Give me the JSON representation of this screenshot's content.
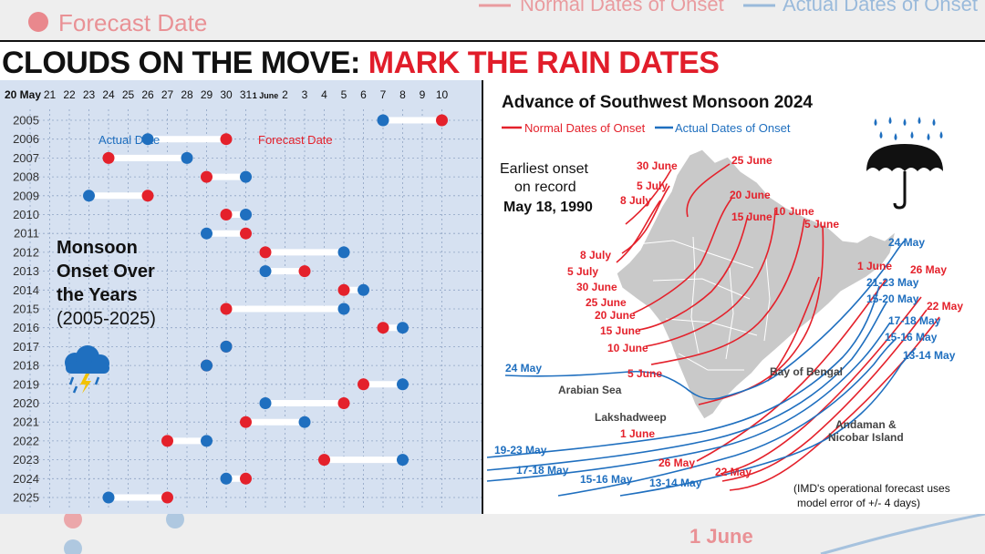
{
  "title": {
    "black": "CLOUDS ON THE MOVE:",
    "red": "MARK THE RAIN DATES"
  },
  "colors": {
    "red": "#e4212b",
    "blue": "#1f6fbf",
    "panel_bg": "#d6e1f1",
    "title_red": "#e11d2a"
  },
  "top_strip": {
    "forecast_label": "Forecast Date",
    "normal_label": "Normal Dates of Onset",
    "actual_label": "Actual Dates of Onset"
  },
  "bottom_strip": {
    "label": "1 June"
  },
  "left": {
    "heading_line1": "Monsoon",
    "heading_line2": "Onset Over",
    "heading_line3": "the Years",
    "heading_line4": "(2005-2025)",
    "actual_label": "Actual Date",
    "forecast_label": "Forecast Date",
    "icon": "storm-cloud-icon"
  },
  "right": {
    "title": "Advance of Southwest Monsoon 2024",
    "legend_normal": "Normal Dates of Onset",
    "legend_actual": "Actual Dates of Onset",
    "earliest_line1": "Earliest onset",
    "earliest_line2": "on record",
    "earliest_line3": "May 18, 1990",
    "normal_labels": [
      "30 June",
      "25 June",
      "5 July",
      "8 July",
      "20 June",
      "15 June",
      "10 June",
      "5 June",
      "8 July",
      "5 July",
      "30 June",
      "25 June",
      "20 June",
      "15 June",
      "10 June",
      "5 June",
      "1 June",
      "1 June",
      "26 May",
      "22 May",
      "26 May",
      "22 May"
    ],
    "actual_labels": [
      "24 May",
      "21-23 May",
      "15-20 May",
      "17-18 May",
      "15-16 May",
      "13-14 May",
      "24 May",
      "19-23 May",
      "17-18 May",
      "15-16 May",
      "13-14 May"
    ],
    "places": [
      "Arabian Sea",
      "Bay of Bengal",
      "Lakshadweep",
      "Andaman &",
      "Nicobar Island"
    ],
    "note_line1": "(IMD's operational forecast uses",
    "note_line2": "model error of +/- 4 days)",
    "icon": "umbrella-rain-icon"
  },
  "chart_data": {
    "type": "dumbbell",
    "title": "Monsoon Onset Over the Years (2005-2025)",
    "x_ticks": [
      "20 May",
      "21",
      "22",
      "23",
      "24",
      "25",
      "26",
      "27",
      "28",
      "29",
      "30",
      "31",
      "1 June",
      "2",
      "3",
      "4",
      "5",
      "6",
      "7",
      "8",
      "9",
      "10"
    ],
    "rows": [
      {
        "year": "2005",
        "actual": "7 June",
        "forecast": "10 June"
      },
      {
        "year": "2006",
        "actual": "26 May",
        "forecast": "30 May"
      },
      {
        "year": "2007",
        "actual": "28 May",
        "forecast": "24 May"
      },
      {
        "year": "2008",
        "actual": "31 May",
        "forecast": "29 May"
      },
      {
        "year": "2009",
        "actual": "23 May",
        "forecast": "26 May"
      },
      {
        "year": "2010",
        "actual": "31 May",
        "forecast": "30 May"
      },
      {
        "year": "2011",
        "actual": "29 May",
        "forecast": "31 May"
      },
      {
        "year": "2012",
        "actual": "5 June",
        "forecast": "1 June"
      },
      {
        "year": "2013",
        "actual": "1 June",
        "forecast": "3 June"
      },
      {
        "year": "2014",
        "actual": "6 June",
        "forecast": "5 June"
      },
      {
        "year": "2015",
        "actual": "5 June",
        "forecast": "30 May"
      },
      {
        "year": "2016",
        "actual": "8 June",
        "forecast": "7 June"
      },
      {
        "year": "2017",
        "actual": "30 May",
        "forecast": "30 May"
      },
      {
        "year": "2018",
        "actual": "29 May",
        "forecast": "29 May"
      },
      {
        "year": "2019",
        "actual": "8 June",
        "forecast": "6 June"
      },
      {
        "year": "2020",
        "actual": "1 June",
        "forecast": "5 June"
      },
      {
        "year": "2021",
        "actual": "3 June",
        "forecast": "31 May"
      },
      {
        "year": "2022",
        "actual": "29 May",
        "forecast": "27 May"
      },
      {
        "year": "2023",
        "actual": "8 June",
        "forecast": "4 June"
      },
      {
        "year": "2024",
        "actual": "30 May",
        "forecast": "31 May"
      },
      {
        "year": "2025",
        "actual": "24 May",
        "forecast": "27 May"
      }
    ],
    "grid": true
  }
}
